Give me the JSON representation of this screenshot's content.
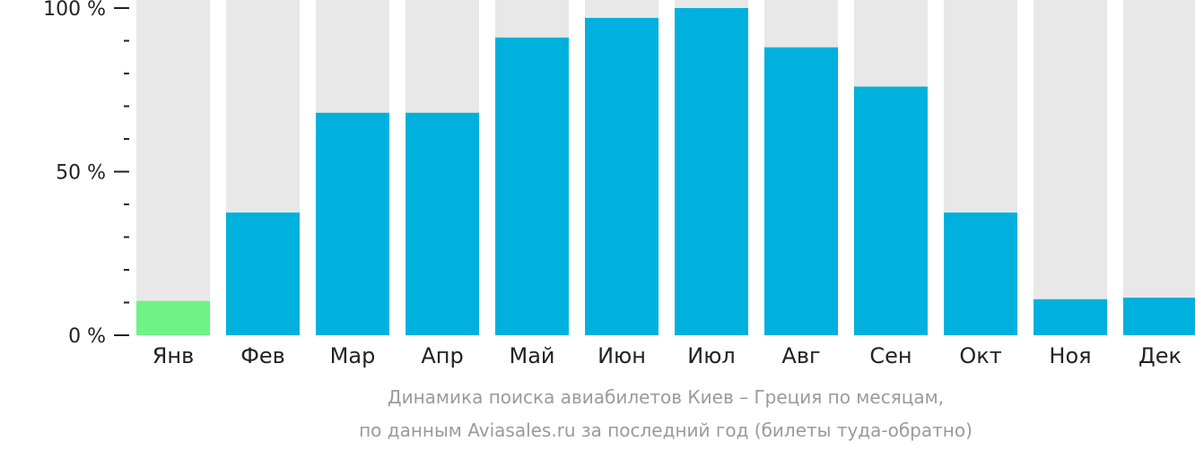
{
  "chart_data": {
    "type": "bar",
    "categories": [
      "Янв",
      "Фев",
      "Мар",
      "Апр",
      "Май",
      "Июн",
      "Июл",
      "Авг",
      "Сен",
      "Окт",
      "Ноя",
      "Дек"
    ],
    "values": [
      10.5,
      37.5,
      68,
      68,
      91,
      97,
      100,
      88,
      76,
      37.5,
      11,
      11.5
    ],
    "ylim": [
      0,
      100
    ],
    "yticks": [
      {
        "value": 0,
        "label": "0 %"
      },
      {
        "value": 50,
        "label": "50 %"
      },
      {
        "value": 100,
        "label": "100 %"
      }
    ],
    "minor_tick_step": 10,
    "highlight_index": 0,
    "colors": {
      "bar": "#00b1de",
      "highlight": "#6ff286",
      "background_bar": "#e8e8e8",
      "axis": "#222222"
    },
    "caption_line1": "Динамика поиска авиабилетов Киев – Греция по месяцам,",
    "caption_line2": "по данным Aviasales.ru за последний год (билеты туда-обратно)"
  }
}
